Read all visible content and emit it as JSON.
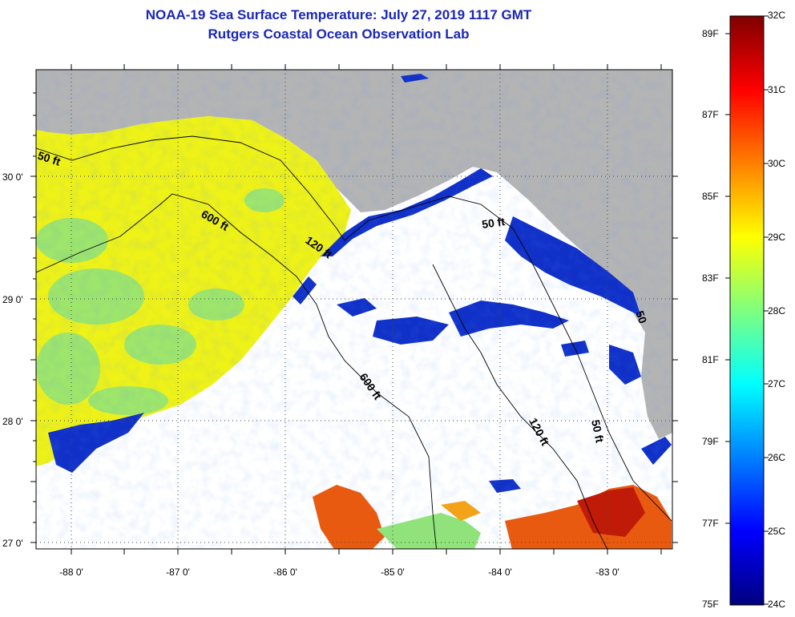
{
  "title_line1": "NOAA-19 Sea Surface Temperature:  July 27, 2019 1117 GMT",
  "title_line2": "Rutgers Coastal Ocean Observation Lab",
  "latitude_labels": [
    "30 0'",
    "29 0'",
    "28 0'",
    "27 0'"
  ],
  "longitude_labels": [
    "-88 0'",
    "-87 0'",
    "-86 0'",
    "-85 0'",
    "-84 0'",
    "-83 0'"
  ],
  "contour_labels": [
    {
      "id": "c50-west",
      "text": "50 ft"
    },
    {
      "id": "c600-north",
      "text": "600 ft"
    },
    {
      "id": "c120-north",
      "text": "120 ft"
    },
    {
      "id": "c50-bigbend",
      "text": "50 ft"
    },
    {
      "id": "c600-south",
      "text": "600 ft"
    },
    {
      "id": "c120-south",
      "text": "120 ft"
    },
    {
      "id": "c50-south",
      "text": "50 ft"
    },
    {
      "id": "c50-east",
      "text": "50"
    }
  ],
  "colorbar": {
    "fahrenheit": [
      "89F",
      "87F",
      "85F",
      "83F",
      "81F",
      "79F",
      "77F",
      "75F"
    ],
    "celsius": [
      "32C",
      "31C",
      "30C",
      "29C",
      "28C",
      "27C",
      "26C",
      "25C",
      "24C"
    ],
    "gradient_colors": [
      "#00007f",
      "#0000ff",
      "#007fff",
      "#00ffff",
      "#7fff7f",
      "#ffff00",
      "#ff7f00",
      "#ff0000",
      "#7f0000"
    ]
  },
  "map_colors": {
    "land": "#b4b4b4",
    "no_data": "#ffffff",
    "warm_shelf": "#eef217",
    "mid_water": "#8fe37a",
    "cool_water": "#1030c8",
    "hot_water": "#e85a10"
  }
}
